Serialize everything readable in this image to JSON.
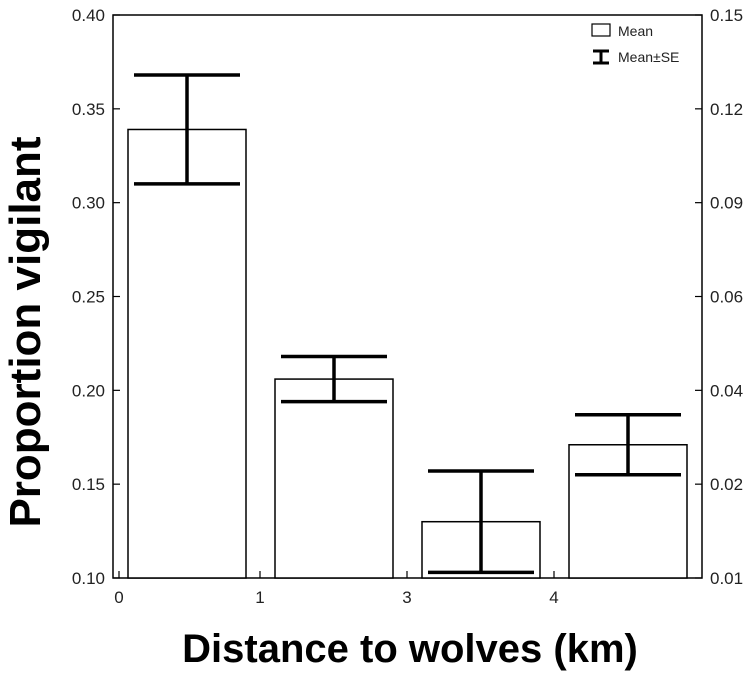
{
  "chart_data": {
    "type": "bar",
    "xlabel": "Distance to wolves (km)",
    "ylabel": "Proportion vigilant",
    "x_ticks": [
      "0",
      "1",
      "3",
      "4"
    ],
    "y_ticks_left": [
      "0.10",
      "0.15",
      "0.20",
      "0.25",
      "0.30",
      "0.35",
      "0.40"
    ],
    "y_ticks_right": [
      "0.01",
      "0.02",
      "0.04",
      "0.06",
      "0.09",
      "0.12",
      "0.15"
    ],
    "ylim": [
      0.1,
      0.4
    ],
    "series": [
      {
        "name": "Mean",
        "values": [
          0.339,
          0.206,
          0.13,
          0.171
        ]
      }
    ],
    "error_bars": {
      "name": "Mean±SE",
      "upper": [
        0.368,
        0.218,
        0.157,
        0.187
      ],
      "lower": [
        0.31,
        0.194,
        0.103,
        0.155
      ]
    },
    "legend": {
      "position": "top-right",
      "entries": [
        "Mean",
        "Mean±SE"
      ]
    },
    "grid": false
  }
}
